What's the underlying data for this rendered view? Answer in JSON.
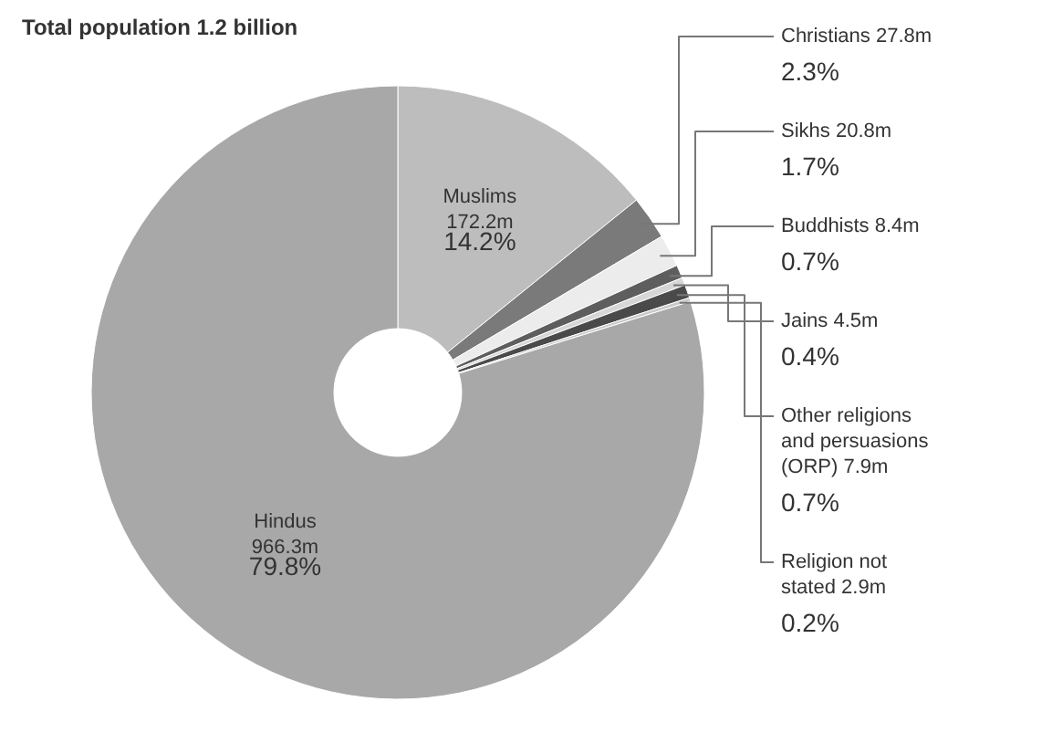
{
  "chart_data": {
    "type": "donut",
    "title": "Total population 1.2 billion",
    "categories": [
      "Muslims\n172.2m",
      "Christians 27.8m",
      "Sikhs 20.8m",
      "Buddhists 8.4m",
      "Jains 4.5m",
      "Other religions\nand persuasions\n(ORP) 7.9m",
      "Religion not\nstated 2.9m",
      "Hindus\n966.3m"
    ],
    "values": [
      14.2,
      2.3,
      1.7,
      0.7,
      0.4,
      0.7,
      0.2,
      79.8
    ],
    "value_labels": [
      "14.2%",
      "2.3%",
      "1.7%",
      "0.7%",
      "0.4%",
      "0.7%",
      "0.2%",
      "79.8%"
    ],
    "colors": [
      "#bdbdbd",
      "#7a7a7a",
      "#ececec",
      "#5e5e5e",
      "#d6d6d6",
      "#4a4a4a",
      "#c9c9c9",
      "#a8a8a8"
    ]
  }
}
